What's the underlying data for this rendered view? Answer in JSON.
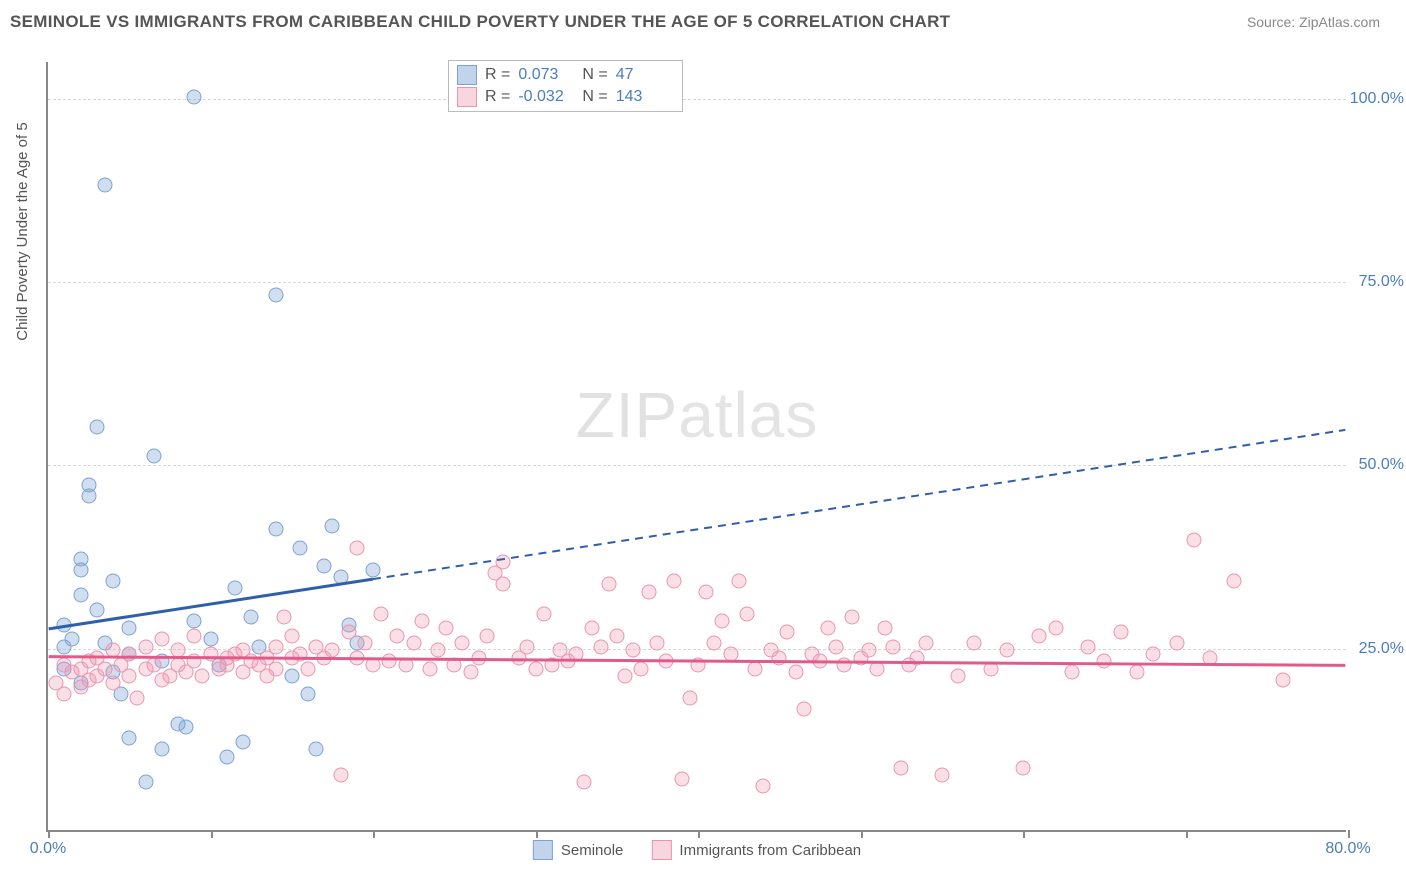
{
  "title": "SEMINOLE VS IMMIGRANTS FROM CARIBBEAN CHILD POVERTY UNDER THE AGE OF 5 CORRELATION CHART",
  "source": "Source: ZipAtlas.com",
  "y_axis_title": "Child Poverty Under the Age of 5",
  "watermark_bold": "ZIP",
  "watermark_thin": "atlas",
  "chart": {
    "type": "scatter",
    "xlim": [
      0,
      80
    ],
    "ylim": [
      0,
      105
    ],
    "background_color": "#ffffff",
    "grid_color": "#d8d8d8",
    "y_gridlines": [
      25,
      50,
      75,
      100
    ],
    "y_tick_labels": [
      "25.0%",
      "50.0%",
      "75.0%",
      "100.0%"
    ],
    "x_ticks": [
      0,
      10,
      20,
      30,
      40,
      50,
      60,
      70,
      80
    ],
    "x_tick_labels": {
      "0": "0.0%",
      "80": "80.0%"
    },
    "series": [
      {
        "name": "Seminole",
        "color_fill": "rgba(120,160,210,0.35)",
        "color_stroke": "#7aa3d4",
        "marker_size": 15,
        "regression": {
          "slope": 0.34,
          "intercept": 27.5,
          "x_solid_end": 20,
          "color": "#2f5fa8",
          "width": 3
        },
        "stats": {
          "R": "0.073",
          "N": "47"
        },
        "points": [
          [
            1,
            22
          ],
          [
            1,
            25
          ],
          [
            1,
            28
          ],
          [
            1.5,
            26
          ],
          [
            2,
            20
          ],
          [
            2,
            32
          ],
          [
            2,
            35.5
          ],
          [
            2,
            37
          ],
          [
            2.5,
            45.5
          ],
          [
            2.5,
            47
          ],
          [
            3,
            30
          ],
          [
            3,
            55
          ],
          [
            3.5,
            25.5
          ],
          [
            3.5,
            88
          ],
          [
            4,
            21.5
          ],
          [
            4,
            34
          ],
          [
            4.5,
            18.5
          ],
          [
            5,
            12.5
          ],
          [
            5,
            24
          ],
          [
            5,
            27.5
          ],
          [
            6,
            6.5
          ],
          [
            6.5,
            51
          ],
          [
            7,
            11
          ],
          [
            7,
            23
          ],
          [
            8,
            14.5
          ],
          [
            8.5,
            14
          ],
          [
            9,
            100
          ],
          [
            9,
            28.5
          ],
          [
            10,
            26
          ],
          [
            10.5,
            22.5
          ],
          [
            11,
            10
          ],
          [
            11.5,
            33
          ],
          [
            12,
            12
          ],
          [
            12.5,
            29
          ],
          [
            13,
            25
          ],
          [
            14,
            73
          ],
          [
            14,
            41
          ],
          [
            15,
            21
          ],
          [
            15.5,
            38.5
          ],
          [
            16,
            18.5
          ],
          [
            16.5,
            11
          ],
          [
            17,
            36
          ],
          [
            17.5,
            41.5
          ],
          [
            18,
            34.5
          ],
          [
            18.5,
            28
          ],
          [
            19,
            25.5
          ],
          [
            20,
            35.5
          ]
        ]
      },
      {
        "name": "Immigrants from Caribbean",
        "color_fill": "rgba(240,150,175,0.30)",
        "color_stroke": "#e995af",
        "marker_size": 15,
        "regression": {
          "slope": -0.015,
          "intercept": 23.7,
          "x_solid_end": 80,
          "color": "#e05a8a",
          "width": 3
        },
        "stats": {
          "R": "-0.032",
          "N": "143"
        },
        "points": [
          [
            0.5,
            20
          ],
          [
            1,
            22.5
          ],
          [
            1,
            18.5
          ],
          [
            1.5,
            21.5
          ],
          [
            2,
            22
          ],
          [
            2,
            19.5
          ],
          [
            2.5,
            23
          ],
          [
            2.5,
            20.5
          ],
          [
            3,
            21
          ],
          [
            3,
            23.5
          ],
          [
            3.5,
            22
          ],
          [
            4,
            24.5
          ],
          [
            4,
            20
          ],
          [
            4.5,
            22.5
          ],
          [
            5,
            21
          ],
          [
            5,
            24
          ],
          [
            5.5,
            18
          ],
          [
            6,
            22
          ],
          [
            6,
            25
          ],
          [
            6.5,
            22.5
          ],
          [
            7,
            20.5
          ],
          [
            7,
            26
          ],
          [
            7.5,
            21
          ],
          [
            8,
            22.5
          ],
          [
            8,
            24.5
          ],
          [
            8.5,
            21.5
          ],
          [
            9,
            23
          ],
          [
            9,
            26.5
          ],
          [
            9.5,
            21
          ],
          [
            10,
            24
          ],
          [
            10.5,
            22
          ],
          [
            11,
            23.5
          ],
          [
            11,
            22.5
          ],
          [
            11.5,
            24
          ],
          [
            12,
            21.5
          ],
          [
            12,
            24.5
          ],
          [
            12.5,
            23
          ],
          [
            13,
            22.5
          ],
          [
            13.5,
            21
          ],
          [
            13.5,
            23.5
          ],
          [
            14,
            22
          ],
          [
            14,
            25
          ],
          [
            14.5,
            29
          ],
          [
            15,
            26.5
          ],
          [
            15,
            23.5
          ],
          [
            15.5,
            24
          ],
          [
            16,
            22
          ],
          [
            16.5,
            25
          ],
          [
            17,
            23.5
          ],
          [
            17.5,
            24.5
          ],
          [
            18,
            7.5
          ],
          [
            18.5,
            27
          ],
          [
            19,
            23.5
          ],
          [
            19,
            38.5
          ],
          [
            19.5,
            25.5
          ],
          [
            20,
            22.5
          ],
          [
            20.5,
            29.5
          ],
          [
            21,
            23
          ],
          [
            21.5,
            26.5
          ],
          [
            22,
            22.5
          ],
          [
            22.5,
            25.5
          ],
          [
            23,
            28.5
          ],
          [
            23.5,
            22
          ],
          [
            24,
            24.5
          ],
          [
            24.5,
            27.5
          ],
          [
            25,
            22.5
          ],
          [
            25.5,
            25.5
          ],
          [
            26,
            21.5
          ],
          [
            26.5,
            23.5
          ],
          [
            27,
            26.5
          ],
          [
            27.5,
            35
          ],
          [
            28,
            33.5
          ],
          [
            28,
            36.5
          ],
          [
            29,
            23.5
          ],
          [
            29.5,
            25
          ],
          [
            30,
            22
          ],
          [
            30.5,
            29.5
          ],
          [
            31,
            22.5
          ],
          [
            31.5,
            24.5
          ],
          [
            32,
            23
          ],
          [
            32.5,
            24
          ],
          [
            33,
            6.5
          ],
          [
            33.5,
            27.5
          ],
          [
            34,
            25
          ],
          [
            34.5,
            33.5
          ],
          [
            35,
            26.5
          ],
          [
            35.5,
            21
          ],
          [
            36,
            24.5
          ],
          [
            36.5,
            22
          ],
          [
            37,
            32.5
          ],
          [
            37.5,
            25.5
          ],
          [
            38,
            23
          ],
          [
            38.5,
            34
          ],
          [
            39,
            7
          ],
          [
            39.5,
            18
          ],
          [
            40,
            22.5
          ],
          [
            40.5,
            32.5
          ],
          [
            41,
            25.5
          ],
          [
            41.5,
            28.5
          ],
          [
            42,
            24
          ],
          [
            42.5,
            34
          ],
          [
            43,
            29.5
          ],
          [
            43.5,
            22
          ],
          [
            44,
            6
          ],
          [
            44.5,
            24.5
          ],
          [
            45,
            23.5
          ],
          [
            45.5,
            27
          ],
          [
            46,
            21.5
          ],
          [
            46.5,
            16.5
          ],
          [
            47,
            24
          ],
          [
            47.5,
            23
          ],
          [
            48,
            27.5
          ],
          [
            48.5,
            25
          ],
          [
            49,
            22.5
          ],
          [
            49.5,
            29
          ],
          [
            50,
            23.5
          ],
          [
            50.5,
            24.5
          ],
          [
            51,
            22
          ],
          [
            51.5,
            27.5
          ],
          [
            52,
            25
          ],
          [
            52.5,
            8.5
          ],
          [
            53,
            22.5
          ],
          [
            53.5,
            23.5
          ],
          [
            54,
            25.5
          ],
          [
            55,
            7.5
          ],
          [
            56,
            21
          ],
          [
            57,
            25.5
          ],
          [
            58,
            22
          ],
          [
            59,
            24.5
          ],
          [
            60,
            8.5
          ],
          [
            61,
            26.5
          ],
          [
            62,
            27.5
          ],
          [
            63,
            21.5
          ],
          [
            64,
            25
          ],
          [
            65,
            23
          ],
          [
            66,
            27
          ],
          [
            67,
            21.5
          ],
          [
            68,
            24
          ],
          [
            69.5,
            25.5
          ],
          [
            70.5,
            39.5
          ],
          [
            71.5,
            23.5
          ],
          [
            73,
            34
          ],
          [
            76,
            20.5
          ]
        ]
      }
    ]
  },
  "stats_box": {
    "rows": [
      {
        "swatch": "blue",
        "R_label": "R =",
        "R": "0.073",
        "N_label": "N =",
        "N": "47"
      },
      {
        "swatch": "pink",
        "R_label": "R =",
        "R": "-0.032",
        "N_label": "N =",
        "N": "143"
      }
    ]
  },
  "legend": {
    "items": [
      {
        "swatch": "blue",
        "label": "Seminole"
      },
      {
        "swatch": "pink",
        "label": "Immigrants from Caribbean"
      }
    ]
  }
}
